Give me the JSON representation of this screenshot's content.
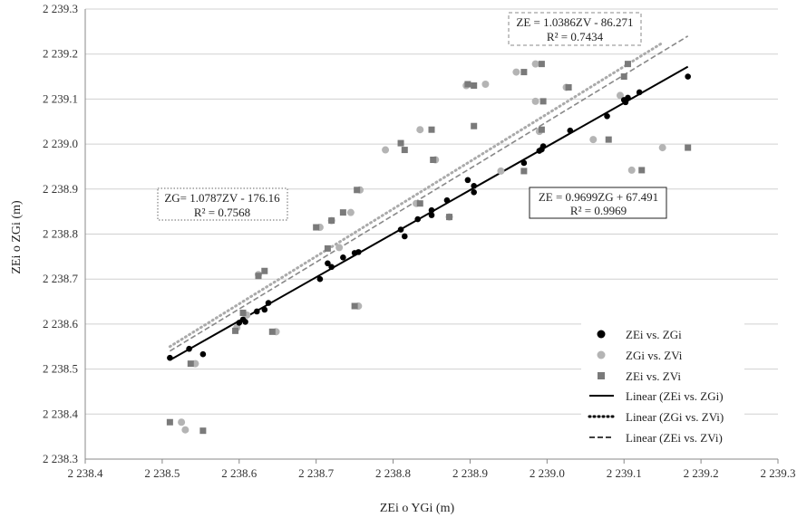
{
  "chart_data": {
    "type": "scatter",
    "xlabel": "ZEi o YGi (m)",
    "ylabel": "ZEi o ZGi (m)",
    "xlim": [
      2238.4,
      2239.3
    ],
    "ylim": [
      2238.3,
      2239.3
    ],
    "x_ticks": [
      2238.4,
      2238.5,
      2238.6,
      2238.7,
      2238.8,
      2238.9,
      2239.0,
      2239.1,
      2239.2,
      2239.3
    ],
    "y_ticks": [
      2238.3,
      2238.4,
      2238.5,
      2238.6,
      2238.7,
      2238.8,
      2238.9,
      2239.0,
      2239.1,
      2239.2,
      2239.3
    ],
    "x_tick_labels": [
      "2 238.4",
      "2 238.5",
      "2 238.6",
      "2 238.7",
      "2 238.8",
      "2 238.9",
      "2 239.0",
      "2 239.1",
      "2 239.2",
      "2 239.3"
    ],
    "y_tick_labels": [
      "2 238.3",
      "2 238.4",
      "2 238.5",
      "2 238.6",
      "2 238.7",
      "2 238.8",
      "2 238.9",
      "2 239.0",
      "2 239.1",
      "2 239.2",
      "2 239.3"
    ],
    "grid": "horizontal",
    "legend_position": "bottom-right",
    "series": [
      {
        "name": "ZEi vs. ZGi",
        "marker": "circle",
        "color": "#000000",
        "points": [
          [
            2238.51,
            2238.525
          ],
          [
            2238.535,
            2238.545
          ],
          [
            2238.553,
            2238.533
          ],
          [
            2238.6,
            2238.603
          ],
          [
            2238.605,
            2238.61
          ],
          [
            2238.608,
            2238.605
          ],
          [
            2238.623,
            2238.628
          ],
          [
            2238.633,
            2238.632
          ],
          [
            2238.638,
            2238.647
          ],
          [
            2238.705,
            2238.7
          ],
          [
            2238.715,
            2238.735
          ],
          [
            2238.72,
            2238.727
          ],
          [
            2238.735,
            2238.748
          ],
          [
            2238.75,
            2238.758
          ],
          [
            2238.755,
            2238.76
          ],
          [
            2238.81,
            2238.81
          ],
          [
            2238.815,
            2238.795
          ],
          [
            2238.832,
            2238.833
          ],
          [
            2238.85,
            2238.842
          ],
          [
            2238.85,
            2238.853
          ],
          [
            2238.87,
            2238.875
          ],
          [
            2238.897,
            2238.92
          ],
          [
            2238.905,
            2238.893
          ],
          [
            2238.905,
            2238.907
          ],
          [
            2238.97,
            2238.958
          ],
          [
            2238.99,
            2238.985
          ],
          [
            2238.993,
            2238.988
          ],
          [
            2238.995,
            2238.995
          ],
          [
            2239.03,
            2239.03
          ],
          [
            2239.078,
            2239.062
          ],
          [
            2239.1,
            2239.098
          ],
          [
            2239.102,
            2239.093
          ],
          [
            2239.105,
            2239.103
          ],
          [
            2239.12,
            2239.115
          ],
          [
            2239.183,
            2239.15
          ]
        ]
      },
      {
        "name": "ZGi vs. ZVi",
        "marker": "circle",
        "color": "#b4b4b4",
        "points": [
          [
            2238.525,
            2238.382
          ],
          [
            2238.53,
            2238.365
          ],
          [
            2238.543,
            2238.512
          ],
          [
            2238.597,
            2238.592
          ],
          [
            2238.61,
            2238.62
          ],
          [
            2238.625,
            2238.71
          ],
          [
            2238.648,
            2238.583
          ],
          [
            2238.705,
            2238.815
          ],
          [
            2238.72,
            2238.83
          ],
          [
            2238.73,
            2238.77
          ],
          [
            2238.745,
            2238.848
          ],
          [
            2238.755,
            2238.64
          ],
          [
            2238.757,
            2238.898
          ],
          [
            2238.79,
            2238.987
          ],
          [
            2238.83,
            2238.868
          ],
          [
            2238.835,
            2239.032
          ],
          [
            2238.855,
            2238.965
          ],
          [
            2238.873,
            2238.838
          ],
          [
            2238.895,
            2239.13
          ],
          [
            2238.92,
            2239.133
          ],
          [
            2238.94,
            2238.94
          ],
          [
            2238.96,
            2239.16
          ],
          [
            2238.985,
            2239.095
          ],
          [
            2238.985,
            2239.178
          ],
          [
            2238.99,
            2239.028
          ],
          [
            2239.025,
            2239.126
          ],
          [
            2239.06,
            2239.01
          ],
          [
            2239.095,
            2239.108
          ],
          [
            2239.11,
            2238.942
          ],
          [
            2239.15,
            2238.992
          ]
        ]
      },
      {
        "name": "ZEi vs. ZVi",
        "marker": "square",
        "color": "#7a7a7a",
        "points": [
          [
            2238.51,
            2238.382
          ],
          [
            2238.553,
            2238.363
          ],
          [
            2238.537,
            2238.512
          ],
          [
            2238.595,
            2238.585
          ],
          [
            2238.605,
            2238.625
          ],
          [
            2238.625,
            2238.707
          ],
          [
            2238.633,
            2238.718
          ],
          [
            2238.643,
            2238.583
          ],
          [
            2238.7,
            2238.815
          ],
          [
            2238.715,
            2238.768
          ],
          [
            2238.72,
            2238.83
          ],
          [
            2238.735,
            2238.848
          ],
          [
            2238.75,
            2238.64
          ],
          [
            2238.753,
            2238.898
          ],
          [
            2238.81,
            2239.002
          ],
          [
            2238.815,
            2238.987
          ],
          [
            2238.835,
            2238.868
          ],
          [
            2238.85,
            2239.032
          ],
          [
            2238.852,
            2238.965
          ],
          [
            2238.873,
            2238.838
          ],
          [
            2238.897,
            2239.133
          ],
          [
            2238.905,
            2239.13
          ],
          [
            2238.905,
            2239.04
          ],
          [
            2238.97,
            2238.94
          ],
          [
            2238.97,
            2239.16
          ],
          [
            2238.993,
            2239.178
          ],
          [
            2238.993,
            2239.032
          ],
          [
            2238.995,
            2239.095
          ],
          [
            2239.028,
            2239.126
          ],
          [
            2239.08,
            2239.01
          ],
          [
            2239.1,
            2239.15
          ],
          [
            2239.105,
            2239.178
          ],
          [
            2239.123,
            2238.942
          ],
          [
            2239.183,
            2238.992
          ]
        ]
      }
    ],
    "trendlines": [
      {
        "name": "Linear (ZEi vs. ZGi)",
        "style": "solid",
        "color": "#000000",
        "x_range": [
          2238.51,
          2239.183
        ],
        "y_range": [
          2238.52,
          2239.172
        ]
      },
      {
        "name": "Linear (ZGi vs. ZVi)",
        "style": "dotted",
        "color": "#aaaaaa",
        "x_range": [
          2238.51,
          2239.15
        ],
        "y_range": [
          2238.55,
          2239.225
        ]
      },
      {
        "name": "Linear (ZEi vs. ZVi)",
        "style": "dashed",
        "color": "#888888",
        "x_range": [
          2238.51,
          2239.183
        ],
        "y_range": [
          2238.54,
          2239.24
        ]
      }
    ],
    "equations": [
      {
        "line1": "ZE = 1.0386ZV - 86.271",
        "line2": "R² = 0.7434",
        "border": "dashed"
      },
      {
        "line1": "ZG= 1.0787ZV - 176.16",
        "line2": "R² = 0.7568",
        "border": "dotted"
      },
      {
        "line1": "ZE = 0.9699ZG + 67.491",
        "line2": "R² = 0.9969",
        "border": "solid"
      }
    ]
  }
}
